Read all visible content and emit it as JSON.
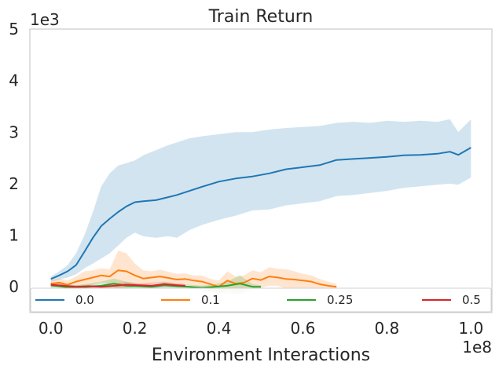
{
  "chart_data": {
    "type": "line",
    "title": "Train Return",
    "xlabel": "Environment Interactions",
    "ylabel": "",
    "x_scale_label": "1e8",
    "y_scale_label": "1e3",
    "xlim": [
      -0.05,
      1.05
    ],
    "ylim": [
      -0.5,
      5
    ],
    "x_ticks": [
      0.0,
      0.2,
      0.4,
      0.6,
      0.8,
      1.0
    ],
    "x_tick_labels": [
      "0.0",
      "0.2",
      "0.4",
      "0.6",
      "0.8",
      "1.0"
    ],
    "y_ticks": [
      0,
      1,
      2,
      3,
      4,
      5
    ],
    "y_tick_labels": [
      "0",
      "1",
      "2",
      "3",
      "4",
      "5"
    ],
    "legend_position": "bottom",
    "series": [
      {
        "name": "0.0",
        "color": "#1f77b4",
        "x": [
          0.0,
          0.02,
          0.04,
          0.06,
          0.08,
          0.1,
          0.12,
          0.14,
          0.16,
          0.18,
          0.2,
          0.22,
          0.25,
          0.28,
          0.3,
          0.33,
          0.36,
          0.4,
          0.44,
          0.48,
          0.52,
          0.56,
          0.6,
          0.64,
          0.68,
          0.72,
          0.76,
          0.8,
          0.84,
          0.88,
          0.92,
          0.95,
          0.97,
          1.0
        ],
        "y": [
          0.15,
          0.22,
          0.3,
          0.42,
          0.68,
          0.95,
          1.18,
          1.32,
          1.45,
          1.56,
          1.64,
          1.66,
          1.68,
          1.74,
          1.78,
          1.86,
          1.94,
          2.04,
          2.1,
          2.14,
          2.2,
          2.28,
          2.32,
          2.36,
          2.46,
          2.48,
          2.5,
          2.52,
          2.55,
          2.56,
          2.58,
          2.62,
          2.56,
          2.7
        ],
        "upper": [
          0.2,
          0.3,
          0.42,
          0.65,
          1.0,
          1.45,
          1.95,
          2.2,
          2.35,
          2.4,
          2.45,
          2.55,
          2.65,
          2.75,
          2.8,
          2.88,
          2.92,
          2.96,
          3.0,
          3.0,
          3.05,
          3.08,
          3.1,
          3.12,
          3.18,
          3.2,
          3.18,
          3.22,
          3.2,
          3.22,
          3.2,
          3.25,
          3.0,
          3.25
        ],
        "lower": [
          0.1,
          0.14,
          0.18,
          0.24,
          0.36,
          0.45,
          0.55,
          0.65,
          0.8,
          0.95,
          1.05,
          0.98,
          0.95,
          0.98,
          0.95,
          1.1,
          1.2,
          1.3,
          1.38,
          1.48,
          1.5,
          1.58,
          1.62,
          1.66,
          1.76,
          1.78,
          1.82,
          1.86,
          1.92,
          1.95,
          1.98,
          2.0,
          1.98,
          2.12
        ]
      },
      {
        "name": "0.1",
        "color": "#ff7f0e",
        "x": [
          0.0,
          0.02,
          0.04,
          0.06,
          0.08,
          0.1,
          0.12,
          0.14,
          0.16,
          0.18,
          0.2,
          0.22,
          0.24,
          0.26,
          0.28,
          0.3,
          0.32,
          0.34,
          0.36,
          0.38,
          0.4,
          0.42,
          0.44,
          0.46,
          0.48,
          0.5,
          0.52,
          0.54,
          0.56,
          0.58,
          0.6,
          0.62,
          0.64,
          0.66,
          0.68
        ],
        "y": [
          0.06,
          0.08,
          0.04,
          0.1,
          0.14,
          0.18,
          0.22,
          0.2,
          0.32,
          0.3,
          0.22,
          0.16,
          0.18,
          0.2,
          0.17,
          0.14,
          0.15,
          0.12,
          0.1,
          0.05,
          0.0,
          0.12,
          0.06,
          0.08,
          0.16,
          0.13,
          0.2,
          0.18,
          0.15,
          0.14,
          0.12,
          0.1,
          0.05,
          0.02,
          0.0
        ],
        "upper": [
          0.12,
          0.16,
          0.12,
          0.2,
          0.3,
          0.32,
          0.36,
          0.34,
          0.7,
          0.65,
          0.45,
          0.32,
          0.3,
          0.33,
          0.29,
          0.25,
          0.26,
          0.22,
          0.22,
          0.15,
          0.12,
          0.3,
          0.2,
          0.22,
          0.32,
          0.28,
          0.38,
          0.35,
          0.34,
          0.3,
          0.25,
          0.22,
          0.15,
          0.1,
          0.05
        ],
        "lower": [
          0.0,
          0.0,
          -0.04,
          0.0,
          0.0,
          0.04,
          0.08,
          0.06,
          -0.05,
          -0.05,
          0.0,
          0.02,
          0.06,
          0.08,
          0.05,
          0.03,
          0.04,
          0.02,
          -0.02,
          -0.08,
          -0.15,
          -0.05,
          -0.1,
          -0.06,
          0.0,
          -0.02,
          0.02,
          0.02,
          -0.04,
          -0.02,
          -0.02,
          -0.02,
          -0.05,
          -0.06,
          -0.05
        ]
      },
      {
        "name": "0.25",
        "color": "#2ca02c",
        "x": [
          0.0,
          0.03,
          0.06,
          0.09,
          0.12,
          0.15,
          0.18,
          0.21,
          0.24,
          0.27,
          0.3,
          0.33,
          0.36,
          0.39,
          0.42,
          0.45,
          0.48,
          0.5
        ],
        "y": [
          0.03,
          0.0,
          -0.02,
          0.0,
          0.02,
          0.06,
          0.02,
          0.01,
          0.0,
          0.03,
          0.01,
          0.0,
          -0.02,
          0.0,
          0.02,
          0.06,
          0.0,
          0.0
        ],
        "upper": [
          0.08,
          0.05,
          0.03,
          0.06,
          0.1,
          0.16,
          0.1,
          0.05,
          0.04,
          0.08,
          0.05,
          0.04,
          0.02,
          0.05,
          0.1,
          0.22,
          0.05,
          0.03
        ],
        "lower": [
          -0.02,
          -0.05,
          -0.08,
          -0.05,
          -0.04,
          -0.05,
          -0.05,
          -0.03,
          -0.04,
          -0.02,
          -0.03,
          -0.04,
          -0.08,
          -0.1,
          -0.12,
          -0.15,
          -0.05,
          -0.03
        ]
      },
      {
        "name": "0.5",
        "color": "#d62728",
        "x": [
          0.0,
          0.03,
          0.06,
          0.09,
          0.12,
          0.15,
          0.18,
          0.21,
          0.24,
          0.27,
          0.3,
          0.32
        ],
        "y": [
          0.04,
          0.02,
          0.0,
          0.01,
          0.0,
          0.02,
          0.04,
          0.03,
          0.02,
          0.05,
          0.03,
          0.02
        ],
        "upper": [
          0.08,
          0.05,
          0.03,
          0.04,
          0.03,
          0.06,
          0.09,
          0.07,
          0.08,
          0.1,
          0.07,
          0.05
        ],
        "lower": [
          0.0,
          -0.01,
          -0.03,
          -0.02,
          -0.03,
          -0.02,
          -0.01,
          -0.01,
          -0.03,
          0.0,
          -0.01,
          -0.01
        ]
      }
    ]
  }
}
